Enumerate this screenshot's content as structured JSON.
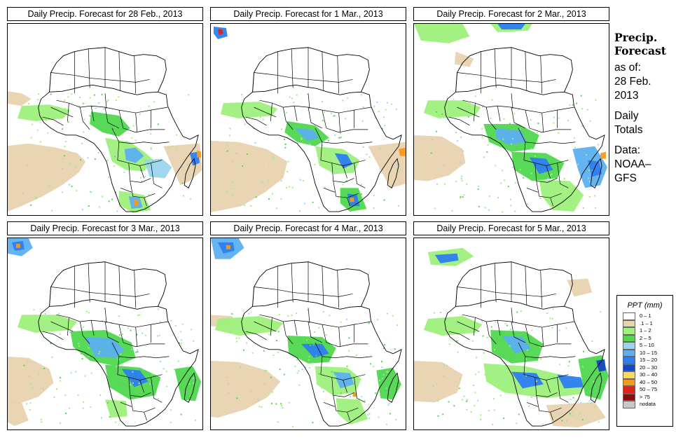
{
  "panels": [
    {
      "title": "Daily Precip. Forecast for  28 Feb., 2013"
    },
    {
      "title": "Daily Precip. Forecast for  1 Mar., 2013"
    },
    {
      "title": "Daily Precip. Forecast for  2 Mar., 2013"
    },
    {
      "title": "Daily Precip. Forecast for  3 Mar., 2013"
    },
    {
      "title": "Daily Precip. Forecast for  4 Mar., 2013"
    },
    {
      "title": "Daily Precip. Forecast for  5 Mar., 2013"
    }
  ],
  "sidebar": {
    "heading_line1": "Precip.",
    "heading_line2": "Forecast",
    "as_of": "as of:",
    "date_line1": "28 Feb.",
    "date_line2": "2013",
    "totals_line1": "Daily",
    "totals_line2": "Totals",
    "data_label": "Data:",
    "source_line1": "NOAA–",
    "source_line2": "GFS"
  },
  "legend": {
    "title": "PPT (mm)",
    "items": [
      {
        "label": "0 – 1",
        "color": "#ffffff"
      },
      {
        "label": ".1 – 1",
        "color": "#e8d2b0"
      },
      {
        "label": "1 – 2",
        "color": "#9ff07c"
      },
      {
        "label": "2 – 5",
        "color": "#4fd84f"
      },
      {
        "label": "5 – 10",
        "color": "#9cd4ee"
      },
      {
        "label": "10 – 15",
        "color": "#5cb0f0"
      },
      {
        "label": "15 – 20",
        "color": "#2e7ef0"
      },
      {
        "label": "20 – 30",
        "color": "#1446c8"
      },
      {
        "label": "30 – 40",
        "color": "#f5dc5a"
      },
      {
        "label": "40 – 50",
        "color": "#f49a1c"
      },
      {
        "label": "50 – 75",
        "color": "#e02414"
      },
      {
        "label": "> 75",
        "color": "#8c0c0c"
      },
      {
        "label": "nodata",
        "color": "#c8c8c8"
      }
    ]
  }
}
